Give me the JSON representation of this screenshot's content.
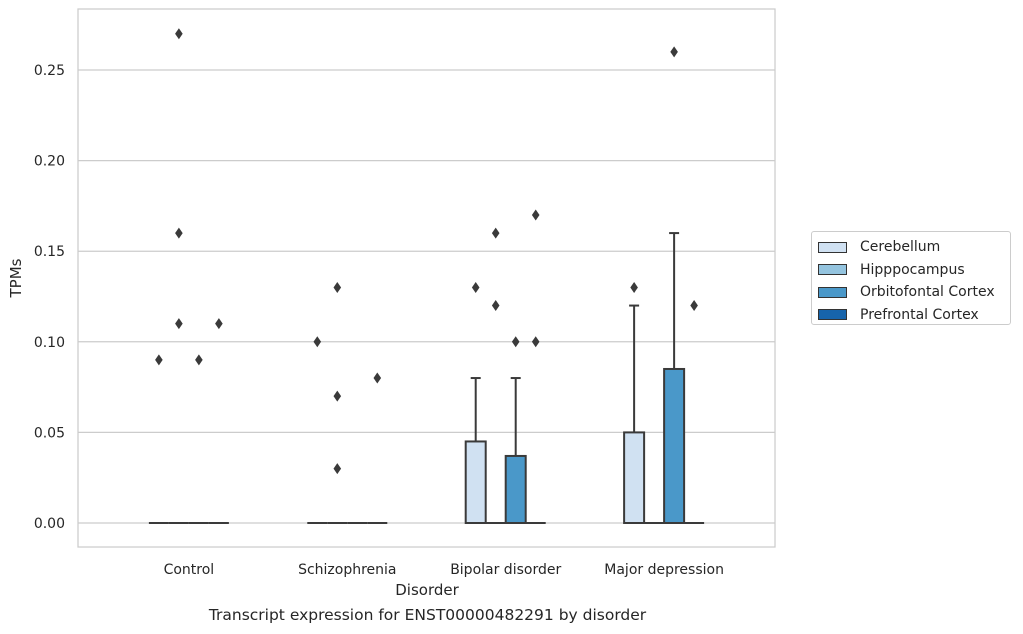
{
  "caption": "Transcript expression for ENST00000482291 by disorder",
  "chart_data": {
    "type": "box",
    "title": "",
    "xlabel": "Disorder",
    "ylabel": "TPMs",
    "ylim": [
      -0.013,
      0.284
    ],
    "yticks": [
      0.0,
      0.05,
      0.1,
      0.15,
      0.2,
      0.25
    ],
    "ytick_labels": [
      "0.00",
      "0.05",
      "0.10",
      "0.15",
      "0.20",
      "0.25"
    ],
    "grid": "horizontal",
    "legend_position": "right",
    "categories": [
      "Control",
      "Schizophrenia",
      "Bipolar disorder",
      "Major depression"
    ],
    "series": [
      {
        "name": "Cerebellum",
        "color": "#d0e1f2",
        "boxes": [
          {
            "q1": 0,
            "median": 0,
            "q3": 0,
            "whisker_low": 0,
            "whisker_high": 0,
            "outliers": [
              0.09
            ]
          },
          {
            "q1": 0,
            "median": 0,
            "q3": 0,
            "whisker_low": 0,
            "whisker_high": 0,
            "outliers": [
              0.1
            ]
          },
          {
            "q1": 0,
            "median": 0,
            "q3": 0.045,
            "whisker_low": 0,
            "whisker_high": 0.08,
            "outliers": [
              0.13
            ]
          },
          {
            "q1": 0,
            "median": 0,
            "q3": 0.05,
            "whisker_low": 0,
            "whisker_high": 0.12,
            "outliers": [
              0.13
            ]
          }
        ]
      },
      {
        "name": "Hipppocampus",
        "color": "#94c4df",
        "boxes": [
          {
            "q1": 0,
            "median": 0,
            "q3": 0,
            "whisker_low": 0,
            "whisker_high": 0,
            "outliers": [
              0.27,
              0.16,
              0.11
            ]
          },
          {
            "q1": 0,
            "median": 0,
            "q3": 0,
            "whisker_low": 0,
            "whisker_high": 0,
            "outliers": [
              0.13,
              0.07,
              0.03
            ]
          },
          {
            "q1": 0,
            "median": 0,
            "q3": 0,
            "whisker_low": 0,
            "whisker_high": 0,
            "outliers": [
              0.16,
              0.12
            ]
          },
          {
            "q1": 0,
            "median": 0,
            "q3": 0,
            "whisker_low": 0,
            "whisker_high": 0,
            "outliers": []
          }
        ]
      },
      {
        "name": "Orbitofontal Cortex",
        "color": "#4a98c9",
        "boxes": [
          {
            "q1": 0,
            "median": 0,
            "q3": 0,
            "whisker_low": 0,
            "whisker_high": 0,
            "outliers": [
              0.09
            ]
          },
          {
            "q1": 0,
            "median": 0,
            "q3": 0,
            "whisker_low": 0,
            "whisker_high": 0,
            "outliers": []
          },
          {
            "q1": 0,
            "median": 0,
            "q3": 0.037,
            "whisker_low": 0,
            "whisker_high": 0.08,
            "outliers": [
              0.1
            ]
          },
          {
            "q1": 0,
            "median": 0,
            "q3": 0.085,
            "whisker_low": 0,
            "whisker_high": 0.16,
            "outliers": [
              0.26
            ]
          }
        ]
      },
      {
        "name": "Prefrontal Cortex",
        "color": "#1764ab",
        "boxes": [
          {
            "q1": 0,
            "median": 0,
            "q3": 0,
            "whisker_low": 0,
            "whisker_high": 0,
            "outliers": [
              0.11
            ]
          },
          {
            "q1": 0,
            "median": 0,
            "q3": 0,
            "whisker_low": 0,
            "whisker_high": 0,
            "outliers": [
              0.08
            ]
          },
          {
            "q1": 0,
            "median": 0,
            "q3": 0,
            "whisker_low": 0,
            "whisker_high": 0,
            "outliers": [
              0.17,
              0.1
            ]
          },
          {
            "q1": 0,
            "median": 0,
            "q3": 0,
            "whisker_low": 0,
            "whisker_high": 0,
            "outliers": [
              0.12
            ]
          }
        ]
      }
    ]
  }
}
